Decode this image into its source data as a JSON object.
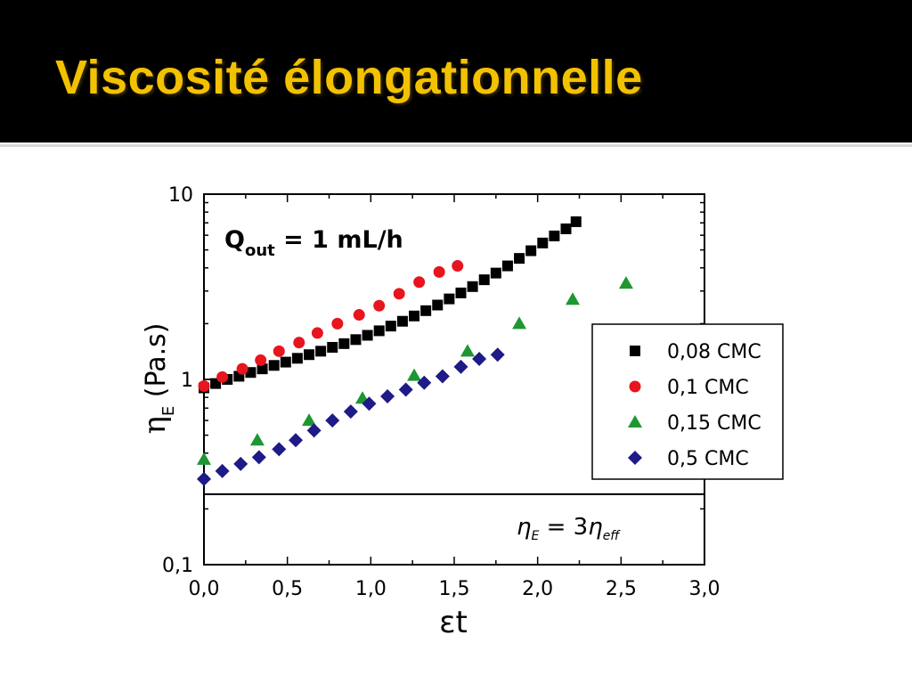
{
  "slide": {
    "title": "Viscosité élongationnelle"
  },
  "colors": {
    "title_bar": "#000000",
    "title_text": "#f2c200",
    "series_0_08": "#000000",
    "series_0_1": "#e8141e",
    "series_0_15": "#1e9632",
    "series_0_5": "#1e1a86"
  },
  "chart_data": {
    "type": "scatter",
    "title": "",
    "annotation_main": "Q",
    "annotation_sub": "out",
    "annotation_rest": " = 1 mL/h",
    "xlabel": "εt",
    "ylabel_symbol": "η",
    "ylabel_sub": "E",
    "ylabel_rest": " (Pa.s)",
    "xlim": [
      0,
      3
    ],
    "ylim": [
      0.1,
      10
    ],
    "yscale": "log",
    "x_ticks": [
      "0,0",
      "0,5",
      "1,0",
      "1,5",
      "2,0",
      "2,5",
      "3,0"
    ],
    "y_ticks": [
      "0,1",
      "1",
      "10"
    ],
    "legend_position": "right",
    "equation": {
      "lhs": "η",
      "lhs_sub": "E",
      "mid": " = 3",
      "rhs": "η",
      "rhs_sub": "eff"
    },
    "reference_line_y": 0.24,
    "series": [
      {
        "name": "0,08 CMC",
        "marker": "square",
        "color": "#000000",
        "x": [
          0.0,
          0.07,
          0.14,
          0.21,
          0.28,
          0.35,
          0.42,
          0.49,
          0.56,
          0.63,
          0.7,
          0.77,
          0.84,
          0.91,
          0.98,
          1.05,
          1.12,
          1.19,
          1.26,
          1.33,
          1.4,
          1.47,
          1.54,
          1.61,
          1.68,
          1.75,
          1.82,
          1.89,
          1.96,
          2.03,
          2.1,
          2.17,
          2.23
        ],
        "y": [
          0.9,
          0.95,
          1.0,
          1.04,
          1.09,
          1.14,
          1.19,
          1.24,
          1.3,
          1.36,
          1.42,
          1.49,
          1.56,
          1.64,
          1.73,
          1.83,
          1.94,
          2.06,
          2.2,
          2.35,
          2.52,
          2.72,
          2.93,
          3.17,
          3.45,
          3.75,
          4.1,
          4.5,
          4.95,
          5.45,
          5.95,
          6.5,
          7.1
        ]
      },
      {
        "name": "0,1 CMC",
        "marker": "circle",
        "color": "#e8141e",
        "x": [
          0.0,
          0.11,
          0.23,
          0.34,
          0.45,
          0.57,
          0.68,
          0.8,
          0.93,
          1.05,
          1.17,
          1.29,
          1.41,
          1.52
        ],
        "y": [
          0.92,
          1.03,
          1.14,
          1.27,
          1.42,
          1.58,
          1.78,
          2.0,
          2.23,
          2.5,
          2.9,
          3.35,
          3.8,
          4.1
        ]
      },
      {
        "name": "0,15 CMC",
        "marker": "triangle",
        "color": "#1e9632",
        "x": [
          0.0,
          0.32,
          0.63,
          0.95,
          1.26,
          1.58,
          1.89,
          2.21,
          2.53
        ],
        "y": [
          0.37,
          0.47,
          0.6,
          0.79,
          1.05,
          1.42,
          2.0,
          2.7,
          3.3
        ]
      },
      {
        "name": "0,5 CMC",
        "marker": "diamond",
        "color": "#1e1a86",
        "x": [
          0.0,
          0.11,
          0.22,
          0.33,
          0.45,
          0.55,
          0.66,
          0.77,
          0.88,
          0.99,
          1.1,
          1.21,
          1.32,
          1.43,
          1.54,
          1.65,
          1.76
        ],
        "y": [
          0.29,
          0.32,
          0.35,
          0.38,
          0.42,
          0.47,
          0.53,
          0.6,
          0.67,
          0.74,
          0.81,
          0.88,
          0.96,
          1.04,
          1.17,
          1.29,
          1.36
        ]
      }
    ]
  }
}
